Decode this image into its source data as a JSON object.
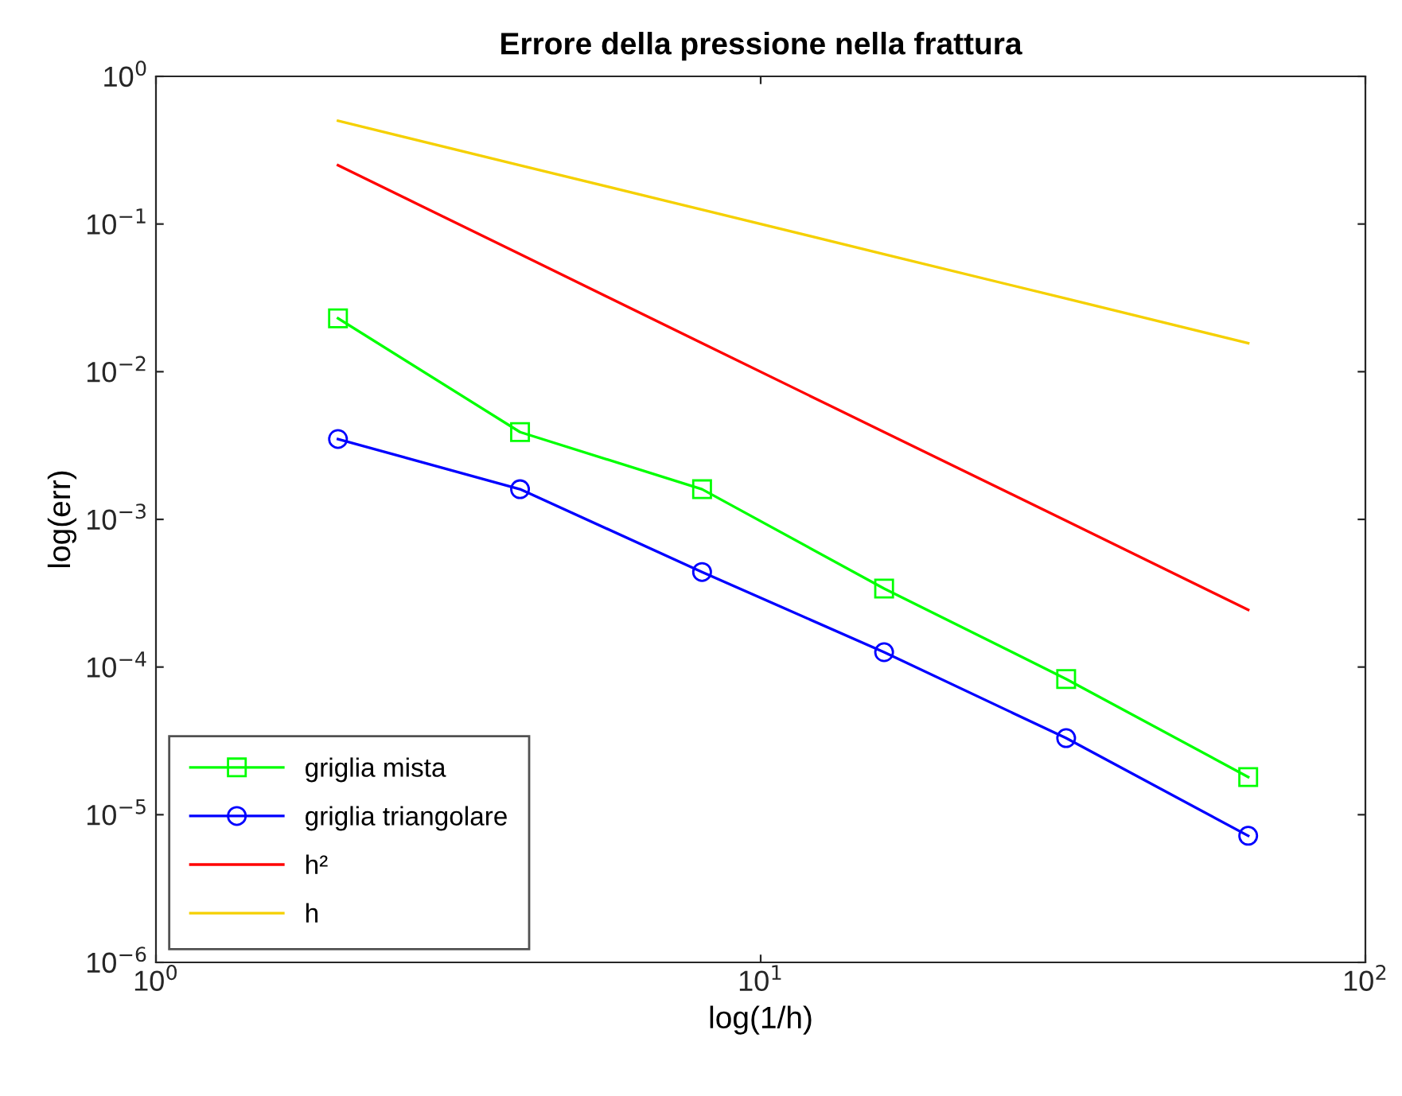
{
  "chart_data": {
    "type": "line",
    "title": "Errore della pressione nella frattura",
    "xlabel": "log(1/h)",
    "ylabel": "log(err)",
    "log": "xy",
    "x": [
      2,
      4,
      8,
      16,
      32,
      64
    ],
    "xlim": [
      1,
      100
    ],
    "ylim": [
      1e-06,
      1
    ],
    "xticks": [
      {
        "value": 1,
        "label": "10$^{0}$"
      },
      {
        "value": 10,
        "label": "10$^{1}$"
      },
      {
        "value": 100,
        "label": "10$^{2}$"
      }
    ],
    "yticks": [
      {
        "value": 1e-06,
        "label": "10$^{−6}$"
      },
      {
        "value": 1e-05,
        "label": "10$^{−5}$"
      },
      {
        "value": 0.0001,
        "label": "10$^{−4}$"
      },
      {
        "value": 0.001,
        "label": "10$^{−3}$"
      },
      {
        "value": 0.01,
        "label": "10$^{−2}$"
      },
      {
        "value": 0.1,
        "label": "10$^{−1}$"
      },
      {
        "value": 1,
        "label": "10$^{0}$"
      }
    ],
    "grid": false,
    "legend": "bottom left",
    "series": [
      {
        "name": "griglia mista",
        "color": "#00ff00",
        "marker": "square",
        "values": [
          0.023,
          0.0039,
          0.0016,
          0.00034,
          8.3e-05,
          1.8e-05
        ]
      },
      {
        "name": "griglia triangolare",
        "color": "#0000ff",
        "marker": "circle",
        "values": [
          0.0035,
          0.0016,
          0.00044,
          0.000126,
          3.3e-05,
          7.2e-06
        ]
      },
      {
        "name": "h²",
        "color": "#ff0000",
        "marker": "none",
        "values": [
          0.25,
          0.0625,
          0.0156,
          0.0039,
          0.00098,
          0.000244
        ]
      },
      {
        "name": "h",
        "color": "#f5d000",
        "marker": "none",
        "values": [
          0.5,
          0.25,
          0.125,
          0.0625,
          0.03125,
          0.0156
        ]
      }
    ]
  }
}
